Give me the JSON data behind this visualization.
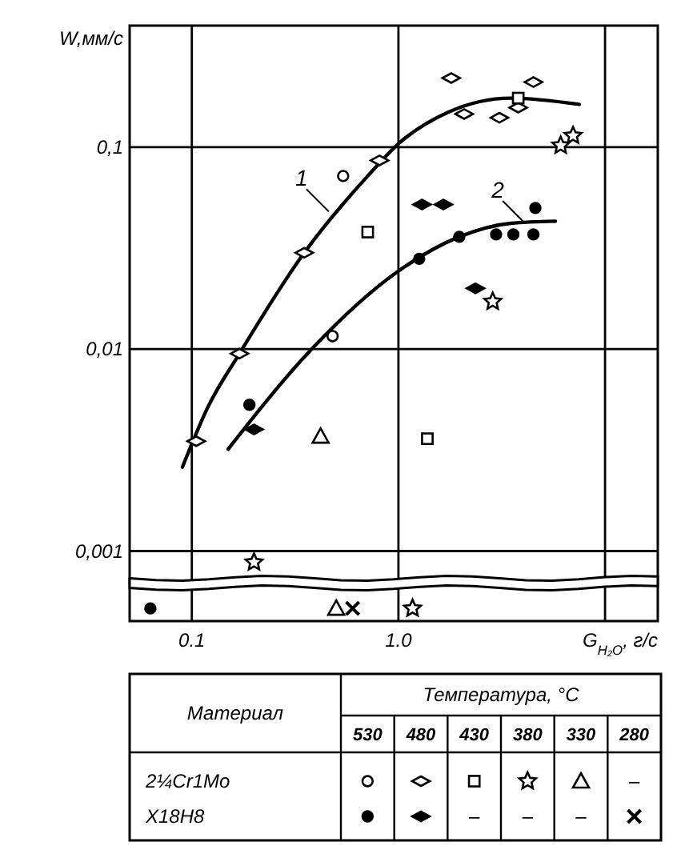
{
  "chart_data": {
    "type": "scatter",
    "xlabel": "G$_{H₂O}$, г/с",
    "ylabel": "W,мм/с",
    "log": "xy",
    "grid": true,
    "xlim": [
      0.05,
      18
    ],
    "ylim": [
      0.00045,
      0.4
    ],
    "xticks": [
      {
        "value": 0.1,
        "label": "0.1"
      },
      {
        "value": 1,
        "label": "1.0"
      },
      {
        "value": 10,
        "label": null
      }
    ],
    "yticks": [
      {
        "value": 0.1,
        "label": "0,1"
      },
      {
        "value": 0.01,
        "label": "0,01"
      },
      {
        "value": 0.001,
        "label": "0,001"
      }
    ],
    "annotations": [
      {
        "text": "1",
        "x": 0.46,
        "y": 0.048
      },
      {
        "text": "2",
        "x": 4.1,
        "y": 0.042
      },
      "Материал",
      "Температура, °C",
      "530",
      "480",
      "430",
      "380",
      "330",
      "280",
      "2¼Cr1Mo",
      "Х18Н8",
      "–"
    ],
    "series": [
      {
        "type": "line",
        "marker": "none",
        "color": "#000000",
        "x": [
          0.09,
          0.12,
          0.17,
          0.35,
          0.71,
          1.0,
          1.74,
          3.5,
          7.5
        ],
        "values": [
          0.0026,
          0.0052,
          0.0095,
          0.03,
          0.072,
          0.104,
          0.149,
          0.175,
          0.163
        ]
      },
      {
        "type": "line",
        "marker": "none",
        "color": "#000000",
        "x": [
          0.15,
          0.38,
          0.98,
          1.97,
          3.5,
          5.75
        ],
        "values": [
          0.0032,
          0.01,
          0.024,
          0.036,
          0.042,
          0.043
        ]
      },
      {
        "marker": "circle",
        "color": "#ffffff",
        "x": [
          0.54,
          0.48
        ],
        "values": [
          0.072,
          0.0116
        ]
      },
      {
        "marker": "diamond",
        "color": "#ffffff",
        "x": [
          0.105,
          0.17,
          0.35,
          0.81,
          1.8,
          2.08,
          3.08,
          4.5,
          3.8
        ],
        "values": [
          0.0035,
          0.0095,
          0.03,
          0.086,
          0.22,
          0.146,
          0.14,
          0.21,
          0.157
        ]
      },
      {
        "marker": "square",
        "color": "#ffffff",
        "x": [
          0.71,
          1.38,
          3.8
        ],
        "values": [
          0.038,
          0.0036,
          0.175
        ]
      },
      {
        "marker": "star",
        "color": "#ffffff",
        "x": [
          6.1,
          7.0,
          2.86,
          0.2,
          1.17
        ],
        "values": [
          0.102,
          0.114,
          0.0172,
          0.00088,
          0.00052
        ]
      },
      {
        "marker": "triangle",
        "color": "#ffffff",
        "x": [
          0.42,
          0.5
        ],
        "values": [
          0.0037,
          0.00052
        ]
      },
      {
        "marker": "circle",
        "color": "#000000",
        "x": [
          1.26,
          1.97,
          2.97,
          3.6,
          4.5,
          4.6,
          0.19,
          0.063
        ],
        "values": [
          0.028,
          0.036,
          0.037,
          0.037,
          0.037,
          0.05,
          0.0053,
          0.00052
        ]
      },
      {
        "marker": "diamond",
        "color": "#000000",
        "x": [
          1.3,
          1.65,
          2.36,
          0.2
        ],
        "values": [
          0.052,
          0.052,
          0.02,
          0.004
        ]
      },
      {
        "marker": "cross",
        "color": "#000000",
        "x": [
          0.6
        ],
        "values": [
          0.00052
        ]
      }
    ]
  }
}
